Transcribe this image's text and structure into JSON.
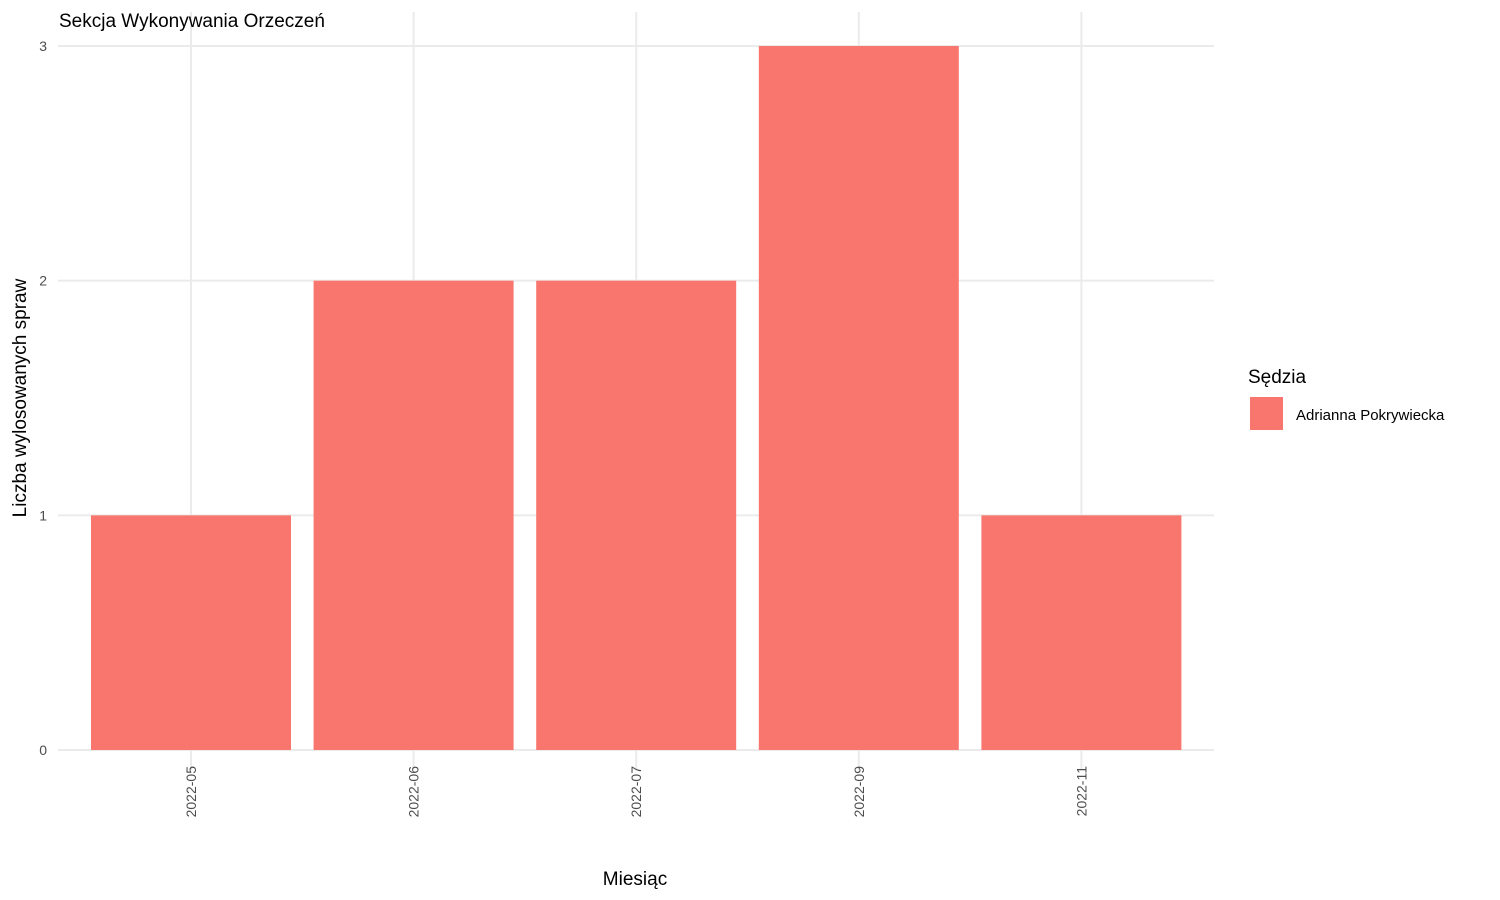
{
  "chart_data": {
    "type": "bar",
    "title": "Sekcja Wykonywania Orzeczeń",
    "xlabel": "Miesiąc",
    "ylabel": "Liczba wylosowanych spraw",
    "categories": [
      "2022-05",
      "2022-06",
      "2022-07",
      "2022-09",
      "2022-11"
    ],
    "series": [
      {
        "name": "Adrianna Pokrywiecka",
        "values": [
          1,
          2,
          2,
          3,
          1
        ],
        "color": "#F8766D"
      }
    ],
    "yticks": [
      "0",
      "1",
      "2",
      "3"
    ],
    "ylim": [
      0,
      3
    ],
    "grid": true,
    "legend": {
      "title": "Sędzia",
      "position": "right"
    },
    "x_tick_rotation": "vertical"
  }
}
